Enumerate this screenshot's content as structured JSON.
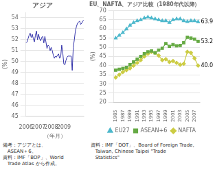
{
  "chart_data": [
    {
      "type": "line",
      "title": "アジア",
      "x_label": "（年月）",
      "y_label": "(%)",
      "categories": [
        "2006",
        null,
        null,
        null,
        null,
        null,
        null,
        null,
        null,
        null,
        null,
        null,
        "2007",
        null,
        null,
        null,
        null,
        null,
        null,
        null,
        null,
        null,
        null,
        null,
        "2008",
        null,
        null,
        null,
        null,
        null,
        null,
        null,
        null,
        null,
        null,
        null,
        "2009",
        null,
        null,
        null,
        null,
        null,
        null,
        null,
        null,
        null,
        null,
        null,
        null,
        null,
        null,
        null,
        null,
        null,
        null,
        null
      ],
      "values": [
        51.7,
        51.8,
        52.1,
        52.4,
        52.6,
        52.2,
        52.5,
        52.1,
        51.8,
        52.4,
        52.8,
        52.0,
        52.5,
        52.1,
        51.9,
        52.2,
        52.3,
        51.7,
        52.3,
        51.8,
        51.2,
        51.5,
        51.4,
        51.0,
        51.3,
        51.0,
        50.6,
        50.3,
        50.5,
        50.4,
        50.6,
        50.7,
        50.3,
        50.4,
        51.5,
        50.8,
        49.8,
        49.7,
        50.1,
        50.4,
        50.5,
        50.5,
        50.5,
        50.5,
        49.2,
        51.3,
        52.0,
        52.8,
        53.2,
        53.5,
        53.6,
        53.7,
        53.4,
        53.5,
        53.7,
        53.8
      ],
      "color": "#3333aa",
      "ylim": [
        45,
        54.5
      ],
      "yticks": [
        45,
        46,
        47,
        48,
        49,
        50,
        51,
        52,
        53,
        54
      ],
      "grid": true,
      "footnote": "備考：アジアとは、\n   ASEAN＋6。\n資料：IMF「BOP」、World\n   Trade Atlas から作成。"
    },
    {
      "type": "line",
      "title": "EU、NAFTA、アジア比較（1980年代以降）",
      "y_label": "(%)",
      "x": [
        1985,
        1986,
        1987,
        1988,
        1989,
        1990,
        1991,
        1992,
        1993,
        1994,
        1995,
        1996,
        1997,
        1998,
        1999,
        2000,
        2001,
        2002,
        2003,
        2004,
        2005,
        2006,
        2007,
        2008
      ],
      "series": [
        {
          "name": "EU27",
          "color": "#4db8cc",
          "marker": "triangle",
          "line_style": "solid",
          "values": [
            55.0,
            56.5,
            58.0,
            60.0,
            62.0,
            63.5,
            64.5,
            65.0,
            66.0,
            66.5,
            66.0,
            65.5,
            65.0,
            64.5,
            64.5,
            63.5,
            65.0,
            65.5,
            65.5,
            64.5,
            64.0,
            64.5,
            64.5,
            63.9
          ]
        },
        {
          "name": "ASEAN+6",
          "color": "#66aa44",
          "marker": "square",
          "line_style": "solid",
          "values": [
            37.5,
            38.0,
            38.5,
            39.0,
            40.5,
            42.0,
            43.5,
            45.0,
            46.5,
            47.5,
            48.0,
            47.0,
            48.5,
            49.5,
            52.0,
            50.5,
            51.5,
            50.8,
            51.0,
            52.5,
            55.5,
            55.0,
            54.5,
            53.2
          ]
        },
        {
          "name": "NAFTA",
          "color": "#cccc44",
          "marker": "diamond",
          "line_style": "solid",
          "values": [
            33.5,
            35.0,
            36.5,
            37.5,
            38.5,
            40.0,
            41.5,
            43.0,
            45.0,
            46.5,
            47.5,
            47.0,
            45.5,
            43.0,
            43.5,
            42.0,
            42.5,
            41.5,
            40.5,
            41.0,
            47.5,
            47.0,
            44.0,
            40.0
          ]
        }
      ],
      "xlim": [
        1984.5,
        2008.5
      ],
      "xticks": [
        1985,
        1987,
        1989,
        1991,
        1993,
        1995,
        1997,
        1999,
        2001,
        2003,
        2005,
        2007
      ],
      "ylim": [
        20,
        70
      ],
      "yticks": [
        20,
        25,
        30,
        35,
        40,
        45,
        50,
        55,
        60,
        65,
        70
      ],
      "grid": true,
      "legend": "lower right",
      "annotations": [
        {
          "text": "63.9",
          "x": 2008,
          "y": 63.9
        },
        {
          "text": "53.2",
          "x": 2008,
          "y": 53.2
        },
        {
          "text": "40.0",
          "x": 2008,
          "y": 40.0
        }
      ],
      "footnote": "資料：IMF「DOT」、Board of Foreign Trade,\n   Taiwan, Chinese Taipei \"Trade\n   Statistics\""
    }
  ]
}
